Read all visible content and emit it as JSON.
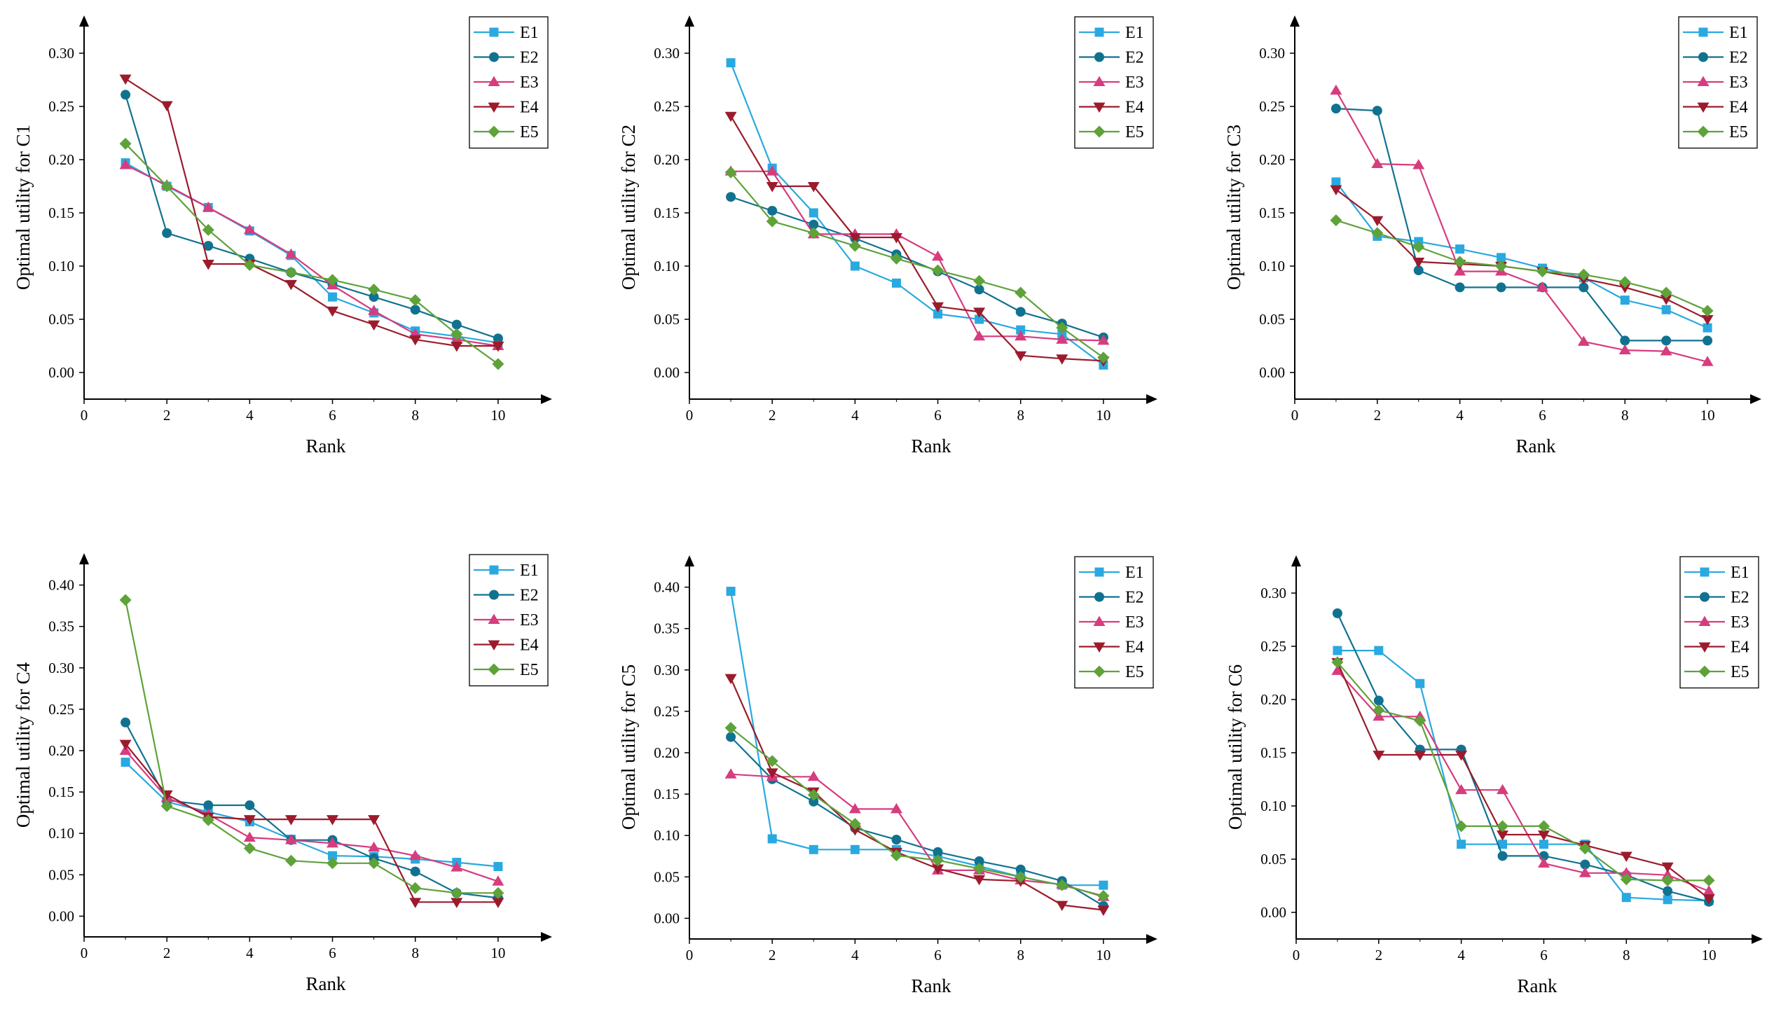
{
  "colors": {
    "E1": "#29a9e0",
    "E2": "#117290",
    "E3": "#d63c7e",
    "E4": "#9b1b2d",
    "E5": "#5ea23a"
  },
  "markers": {
    "E1": "square",
    "E2": "circle",
    "E3": "triangle-up",
    "E4": "triangle-down",
    "E5": "diamond"
  },
  "chart_data": [
    {
      "type": "line",
      "xlabel": "Rank",
      "ylabel": "Optimal utility for C1",
      "xlim": [
        0,
        11
      ],
      "ylim": [
        -0.025,
        0.325
      ],
      "xticks": [
        0,
        2,
        4,
        6,
        8,
        10
      ],
      "yticks": [
        0.0,
        0.05,
        0.1,
        0.15,
        0.2,
        0.25,
        0.3
      ],
      "legend": "top-right",
      "x": [
        1,
        2,
        3,
        4,
        5,
        6,
        7,
        8,
        9,
        10
      ],
      "series": [
        {
          "name": "E1",
          "values": [
            0.197,
            0.175,
            0.155,
            0.133,
            0.11,
            0.071,
            0.056,
            0.039,
            0.034,
            0.028
          ]
        },
        {
          "name": "E2",
          "values": [
            0.261,
            0.131,
            0.119,
            0.107,
            0.094,
            0.083,
            0.071,
            0.059,
            0.045,
            0.032
          ]
        },
        {
          "name": "E3",
          "values": [
            0.195,
            0.176,
            0.155,
            0.134,
            0.111,
            0.082,
            0.058,
            0.036,
            0.031,
            0.025
          ]
        },
        {
          "name": "E4",
          "values": [
            0.276,
            0.251,
            0.102,
            0.102,
            0.083,
            0.058,
            0.045,
            0.031,
            0.025,
            0.025
          ]
        },
        {
          "name": "E5",
          "values": [
            0.215,
            0.175,
            0.134,
            0.101,
            0.094,
            0.087,
            0.078,
            0.068,
            0.036,
            0.008
          ]
        }
      ]
    },
    {
      "type": "line",
      "xlabel": "Rank",
      "ylabel": "Optimal utility for C2",
      "xlim": [
        0,
        11
      ],
      "ylim": [
        -0.025,
        0.325
      ],
      "xticks": [
        0,
        2,
        4,
        6,
        8,
        10
      ],
      "yticks": [
        0.0,
        0.05,
        0.1,
        0.15,
        0.2,
        0.25,
        0.3
      ],
      "legend": "top-right",
      "x": [
        1,
        2,
        3,
        4,
        5,
        6,
        7,
        8,
        9,
        10
      ],
      "series": [
        {
          "name": "E1",
          "values": [
            0.291,
            0.192,
            0.15,
            0.1,
            0.084,
            0.055,
            0.05,
            0.04,
            0.036,
            0.007
          ]
        },
        {
          "name": "E2",
          "values": [
            0.165,
            0.152,
            0.139,
            0.126,
            0.111,
            0.095,
            0.078,
            0.057,
            0.046,
            0.033
          ]
        },
        {
          "name": "E3",
          "values": [
            0.189,
            0.189,
            0.13,
            0.13,
            0.13,
            0.109,
            0.034,
            0.034,
            0.031,
            0.03
          ]
        },
        {
          "name": "E4",
          "values": [
            0.241,
            0.175,
            0.175,
            0.127,
            0.127,
            0.062,
            0.057,
            0.016,
            0.013,
            0.011
          ]
        },
        {
          "name": "E5",
          "values": [
            0.188,
            0.142,
            0.131,
            0.119,
            0.107,
            0.096,
            0.086,
            0.075,
            0.042,
            0.014
          ]
        }
      ]
    },
    {
      "type": "line",
      "xlabel": "Rank",
      "ylabel": "Optimal utility for C3",
      "xlim": [
        0,
        11
      ],
      "ylim": [
        -0.025,
        0.325
      ],
      "xticks": [
        0,
        2,
        4,
        6,
        8,
        10
      ],
      "yticks": [
        0.0,
        0.05,
        0.1,
        0.15,
        0.2,
        0.25,
        0.3
      ],
      "legend": "top-right",
      "x": [
        1,
        2,
        3,
        4,
        5,
        6,
        7,
        8,
        9,
        10
      ],
      "series": [
        {
          "name": "E1",
          "values": [
            0.179,
            0.128,
            0.123,
            0.116,
            0.108,
            0.098,
            0.089,
            0.068,
            0.059,
            0.042
          ]
        },
        {
          "name": "E2",
          "values": [
            0.248,
            0.246,
            0.096,
            0.08,
            0.08,
            0.08,
            0.08,
            0.03,
            0.03,
            0.03
          ]
        },
        {
          "name": "E3",
          "values": [
            0.265,
            0.196,
            0.195,
            0.095,
            0.095,
            0.08,
            0.029,
            0.021,
            0.02,
            0.01
          ]
        },
        {
          "name": "E4",
          "values": [
            0.172,
            0.143,
            0.104,
            0.102,
            0.1,
            0.095,
            0.088,
            0.08,
            0.069,
            0.05
          ]
        },
        {
          "name": "E5",
          "values": [
            0.143,
            0.131,
            0.118,
            0.104,
            0.1,
            0.095,
            0.092,
            0.085,
            0.075,
            0.058
          ]
        }
      ]
    },
    {
      "type": "line",
      "xlabel": "Rank",
      "ylabel": "Optimal utility for C4",
      "xlim": [
        0,
        11
      ],
      "ylim": [
        -0.025,
        0.425
      ],
      "xticks": [
        0,
        2,
        4,
        6,
        8,
        10
      ],
      "yticks": [
        0.0,
        0.05,
        0.1,
        0.15,
        0.2,
        0.25,
        0.3,
        0.35,
        0.4
      ],
      "legend": "top-right",
      "x": [
        1,
        2,
        3,
        4,
        5,
        6,
        7,
        8,
        9,
        10
      ],
      "series": [
        {
          "name": "E1",
          "values": [
            0.186,
            0.138,
            0.126,
            0.114,
            0.093,
            0.073,
            0.072,
            0.069,
            0.065,
            0.06
          ]
        },
        {
          "name": "E2",
          "values": [
            0.234,
            0.14,
            0.134,
            0.134,
            0.092,
            0.092,
            0.07,
            0.054,
            0.028,
            0.022
          ]
        },
        {
          "name": "E3",
          "values": [
            0.2,
            0.143,
            0.123,
            0.095,
            0.092,
            0.088,
            0.083,
            0.073,
            0.059,
            0.042
          ]
        },
        {
          "name": "E4",
          "values": [
            0.208,
            0.147,
            0.12,
            0.117,
            0.117,
            0.117,
            0.117,
            0.017,
            0.017,
            0.017
          ]
        },
        {
          "name": "E5",
          "values": [
            0.382,
            0.133,
            0.116,
            0.082,
            0.067,
            0.064,
            0.064,
            0.034,
            0.028,
            0.028
          ]
        }
      ]
    },
    {
      "type": "line",
      "xlabel": "Rank",
      "ylabel": "Optimal utility for C5",
      "xlim": [
        0,
        11
      ],
      "ylim": [
        -0.025,
        0.425
      ],
      "xticks": [
        0,
        2,
        4,
        6,
        8,
        10
      ],
      "yticks": [
        0.0,
        0.05,
        0.1,
        0.15,
        0.2,
        0.25,
        0.3,
        0.35,
        0.4
      ],
      "legend": "top-right",
      "x": [
        1,
        2,
        3,
        4,
        5,
        6,
        7,
        8,
        9,
        10
      ],
      "series": [
        {
          "name": "E1",
          "values": [
            0.395,
            0.096,
            0.083,
            0.083,
            0.083,
            0.075,
            0.063,
            0.05,
            0.04,
            0.04
          ]
        },
        {
          "name": "E2",
          "values": [
            0.219,
            0.168,
            0.141,
            0.109,
            0.095,
            0.08,
            0.069,
            0.059,
            0.045,
            0.015
          ]
        },
        {
          "name": "E3",
          "values": [
            0.174,
            0.171,
            0.171,
            0.132,
            0.132,
            0.058,
            0.058,
            0.046,
            0.041,
            0.026
          ]
        },
        {
          "name": "E4",
          "values": [
            0.29,
            0.176,
            0.153,
            0.107,
            0.08,
            0.06,
            0.047,
            0.045,
            0.016,
            0.01
          ]
        },
        {
          "name": "E5",
          "values": [
            0.23,
            0.19,
            0.149,
            0.114,
            0.076,
            0.07,
            0.06,
            0.05,
            0.04,
            0.027
          ]
        }
      ]
    },
    {
      "type": "line",
      "xlabel": "Rank",
      "ylabel": "Optimal utility for C6",
      "xlim": [
        0,
        11
      ],
      "ylim": [
        -0.025,
        0.325
      ],
      "xticks": [
        0,
        2,
        4,
        6,
        8,
        10
      ],
      "yticks": [
        0.0,
        0.05,
        0.1,
        0.15,
        0.2,
        0.25,
        0.3
      ],
      "legend": "top-right",
      "x": [
        1,
        2,
        3,
        4,
        5,
        6,
        7,
        8,
        9,
        10
      ],
      "series": [
        {
          "name": "E1",
          "values": [
            0.246,
            0.246,
            0.215,
            0.064,
            0.064,
            0.064,
            0.064,
            0.014,
            0.012,
            0.011
          ]
        },
        {
          "name": "E2",
          "values": [
            0.281,
            0.199,
            0.153,
            0.153,
            0.053,
            0.053,
            0.045,
            0.035,
            0.02,
            0.01
          ]
        },
        {
          "name": "E3",
          "values": [
            0.227,
            0.184,
            0.184,
            0.115,
            0.115,
            0.046,
            0.037,
            0.037,
            0.035,
            0.02
          ]
        },
        {
          "name": "E4",
          "values": [
            0.235,
            0.148,
            0.148,
            0.148,
            0.073,
            0.073,
            0.063,
            0.053,
            0.043,
            0.013
          ]
        },
        {
          "name": "E5",
          "values": [
            0.235,
            0.19,
            0.18,
            0.081,
            0.081,
            0.081,
            0.06,
            0.031,
            0.03,
            0.03
          ]
        }
      ]
    }
  ]
}
